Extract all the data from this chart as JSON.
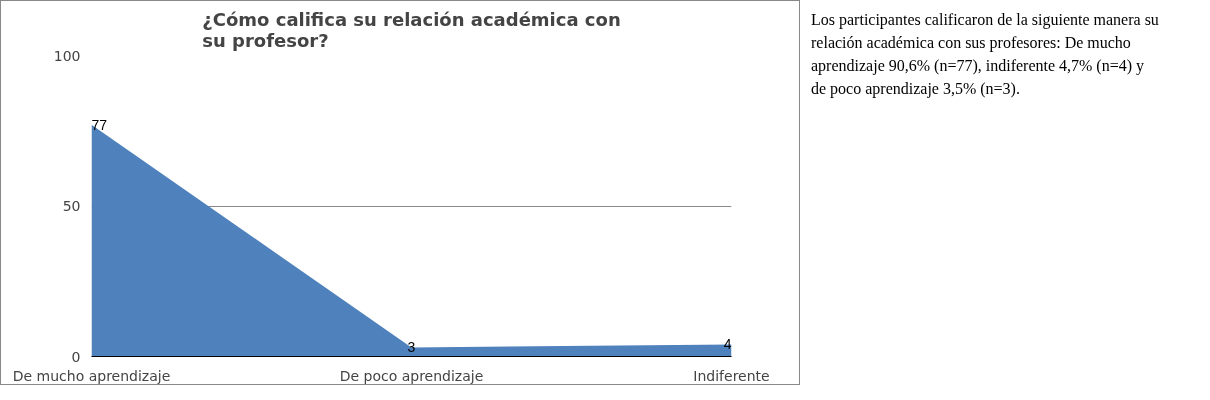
{
  "chart_data": {
    "type": "area",
    "title": "¿Cómo califica su relación académica con su profesor?",
    "categories": [
      "De mucho aprendizaje",
      "De poco aprendizaje",
      "Indiferente"
    ],
    "values": [
      77,
      3,
      4
    ],
    "color": "#4f81bd",
    "data_labels": true,
    "ylim": [
      0,
      100
    ],
    "yticks": [
      0,
      50,
      100
    ],
    "grid": "y",
    "annotations": [
      "Los participantes calificaron de la siguiente manera su relación académica con sus profesores: De mucho aprendizaje 90,6% (n=77), indiferente 4,7% (n=4) y de poco aprendizaje 3,5% (n=3)."
    ]
  }
}
